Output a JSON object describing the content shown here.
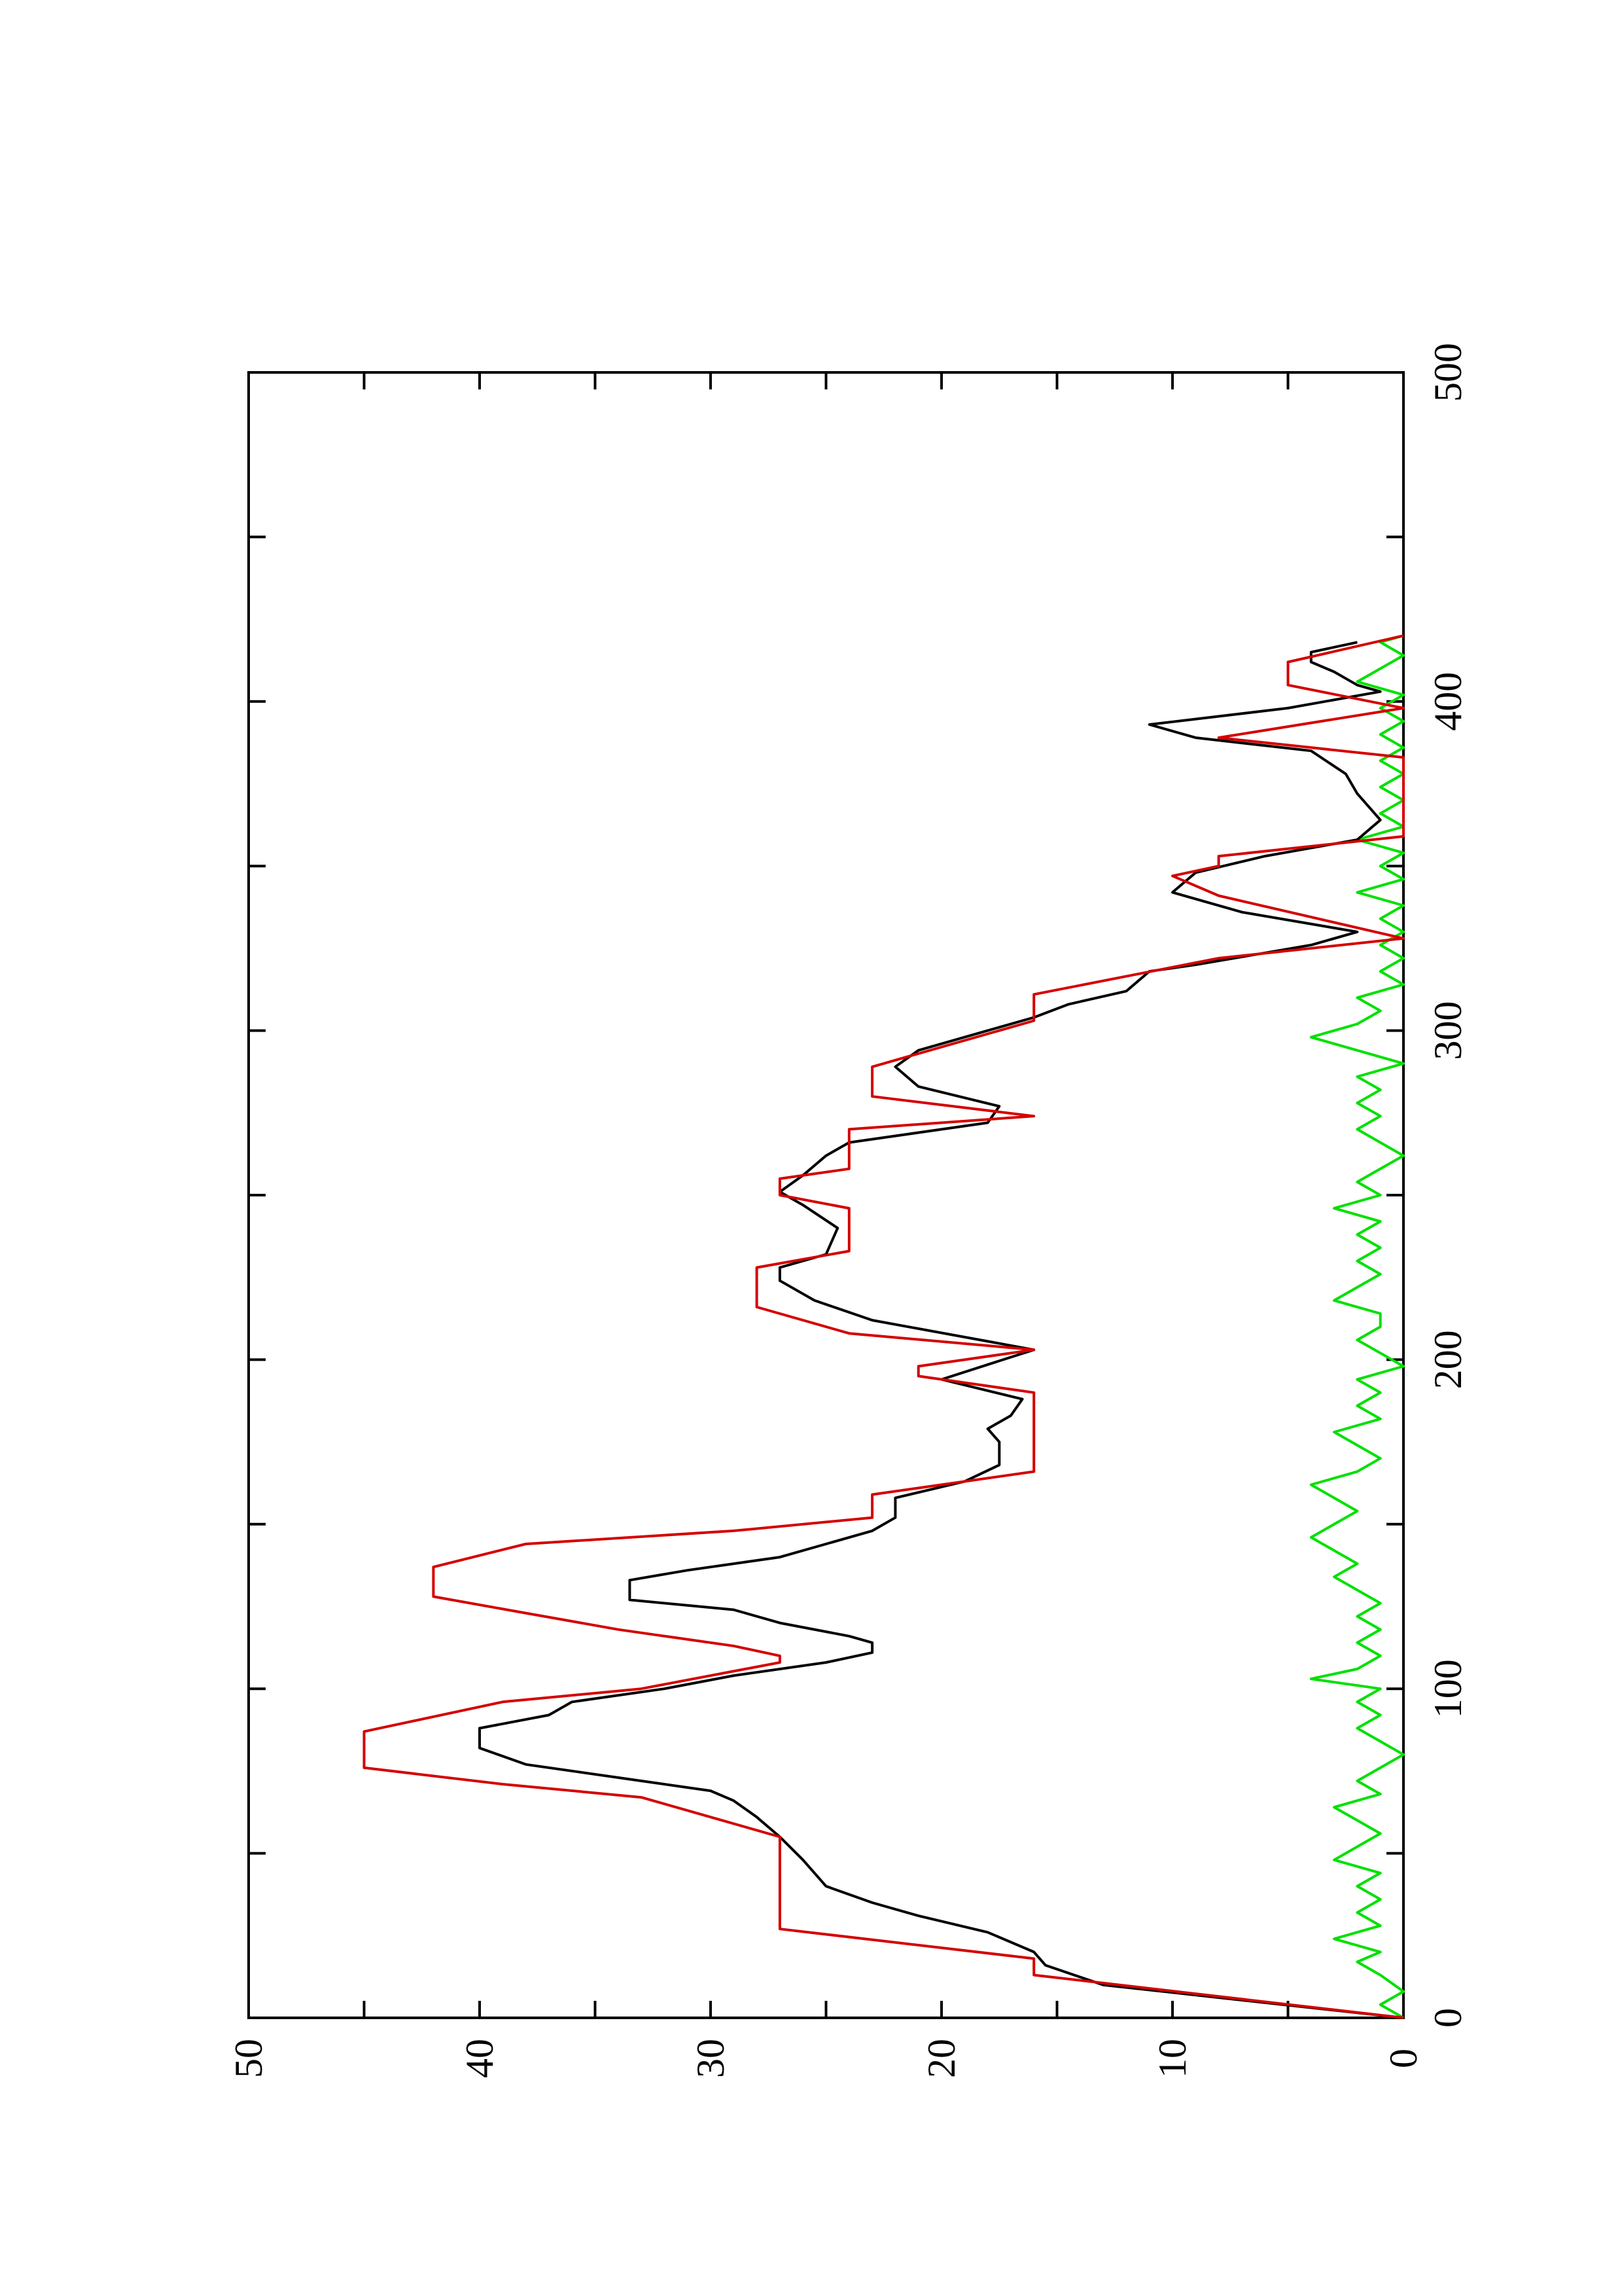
{
  "chart_data": {
    "type": "line",
    "orientation": "rotated 90 degrees counter-clockwise",
    "title": "",
    "xlabel": "",
    "ylabel": "",
    "xlim": [
      0,
      500
    ],
    "ylim": [
      0,
      50
    ],
    "x_ticks": [
      "0",
      "100",
      "200",
      "300",
      "400",
      "500"
    ],
    "y_ticks": [
      "0",
      "10",
      "20",
      "30",
      "40",
      "50"
    ],
    "x_minor_step": 50,
    "y_minor_step": 5,
    "grid": false,
    "legend": "none",
    "series": [
      {
        "color": "#d40000",
        "style": "step-like line",
        "points": [
          [
            0,
            0
          ],
          [
            13,
            16
          ],
          [
            18,
            16
          ],
          [
            27,
            27
          ],
          [
            55,
            27
          ],
          [
            63,
            31
          ],
          [
            67,
            33
          ],
          [
            71,
            39
          ],
          [
            76,
            45
          ],
          [
            87,
            45
          ],
          [
            96,
            39
          ],
          [
            100,
            33
          ],
          [
            108,
            27
          ],
          [
            110,
            27
          ],
          [
            113,
            29
          ],
          [
            118,
            34
          ],
          [
            123,
            38
          ],
          [
            128,
            42
          ],
          [
            137,
            42
          ],
          [
            144,
            38
          ],
          [
            148,
            29
          ],
          [
            152,
            23
          ],
          [
            159,
            23
          ],
          [
            166,
            16
          ],
          [
            190,
            16
          ],
          [
            195,
            21
          ],
          [
            198,
            21
          ],
          [
            203,
            16
          ],
          [
            208,
            24
          ],
          [
            216,
            28
          ],
          [
            228,
            28
          ],
          [
            233,
            24
          ],
          [
            246,
            24
          ],
          [
            250,
            27
          ],
          [
            255,
            27
          ],
          [
            258,
            24
          ],
          [
            270,
            24
          ],
          [
            274,
            16
          ],
          [
            280,
            23
          ],
          [
            289,
            23
          ],
          [
            295,
            20
          ],
          [
            303,
            16
          ],
          [
            311,
            16
          ],
          [
            322,
            8
          ],
          [
            328,
            0
          ],
          [
            341,
            8
          ],
          [
            347,
            10
          ],
          [
            350,
            8
          ],
          [
            353,
            8
          ],
          [
            359,
            0
          ],
          [
            383,
            0
          ],
          [
            389,
            8
          ],
          [
            398,
            0
          ],
          [
            405,
            5
          ],
          [
            412,
            5
          ],
          [
            420,
            0
          ]
        ]
      },
      {
        "color": "#000000",
        "style": "smooth line",
        "points": [
          [
            0,
            0
          ],
          [
            10,
            13
          ],
          [
            16,
            15.5
          ],
          [
            20,
            16
          ],
          [
            26,
            18
          ],
          [
            31,
            21
          ],
          [
            35,
            23
          ],
          [
            40,
            25
          ],
          [
            48,
            26
          ],
          [
            55,
            27
          ],
          [
            61,
            28
          ],
          [
            66,
            29
          ],
          [
            69,
            30
          ],
          [
            72,
            33
          ],
          [
            77,
            38
          ],
          [
            82,
            40
          ],
          [
            88,
            40
          ],
          [
            92,
            37
          ],
          [
            96,
            36
          ],
          [
            100,
            32
          ],
          [
            104,
            29
          ],
          [
            108,
            25
          ],
          [
            111,
            23
          ],
          [
            114,
            23
          ],
          [
            116,
            24
          ],
          [
            120,
            27
          ],
          [
            124,
            29
          ],
          [
            127,
            33.5
          ],
          [
            133,
            33.5
          ],
          [
            136,
            31
          ],
          [
            140,
            27
          ],
          [
            144,
            25
          ],
          [
            148,
            23
          ],
          [
            152,
            22
          ],
          [
            158,
            22
          ],
          [
            163,
            19
          ],
          [
            168,
            17.5
          ],
          [
            175,
            17.5
          ],
          [
            179,
            18
          ],
          [
            183,
            17
          ],
          [
            188,
            16.5
          ],
          [
            194,
            20
          ],
          [
            203,
            16
          ],
          [
            212,
            23
          ],
          [
            218,
            25.5
          ],
          [
            224,
            27
          ],
          [
            228,
            27
          ],
          [
            232,
            25
          ],
          [
            240,
            24.5
          ],
          [
            247,
            26
          ],
          [
            251,
            27
          ],
          [
            256,
            26
          ],
          [
            262,
            25
          ],
          [
            266,
            24
          ],
          [
            272,
            18
          ],
          [
            277,
            17.5
          ],
          [
            283,
            21
          ],
          [
            289,
            22
          ],
          [
            294,
            21
          ],
          [
            300,
            18
          ],
          [
            304,
            16
          ],
          [
            308,
            14.5
          ],
          [
            312,
            12
          ],
          [
            318,
            11
          ],
          [
            320,
            9
          ],
          [
            326,
            4
          ],
          [
            330,
            2
          ],
          [
            336,
            7
          ],
          [
            342,
            10
          ],
          [
            348,
            9
          ],
          [
            353,
            6
          ],
          [
            358,
            2
          ],
          [
            364,
            1
          ],
          [
            372,
            2
          ],
          [
            378,
            2.5
          ],
          [
            385,
            4
          ],
          [
            389,
            9
          ],
          [
            393,
            11
          ],
          [
            398,
            5
          ],
          [
            403,
            1
          ],
          [
            405,
            2
          ],
          [
            409,
            3
          ],
          [
            412,
            4
          ],
          [
            415,
            4
          ],
          [
            418,
            2
          ]
        ]
      },
      {
        "color": "#00e000",
        "style": "noisy line",
        "points": [
          [
            0,
            0
          ],
          [
            4,
            1
          ],
          [
            8,
            0
          ],
          [
            13,
            1
          ],
          [
            17,
            2
          ],
          [
            20,
            1
          ],
          [
            24,
            3
          ],
          [
            28,
            1
          ],
          [
            32,
            2
          ],
          [
            36,
            1
          ],
          [
            40,
            2
          ],
          [
            44,
            1
          ],
          [
            48,
            3
          ],
          [
            52,
            2
          ],
          [
            56,
            1
          ],
          [
            60,
            2
          ],
          [
            64,
            3
          ],
          [
            68,
            1
          ],
          [
            72,
            2
          ],
          [
            76,
            1
          ],
          [
            80,
            0
          ],
          [
            84,
            1
          ],
          [
            88,
            2
          ],
          [
            92,
            1
          ],
          [
            96,
            2
          ],
          [
            100,
            1
          ],
          [
            103,
            4
          ],
          [
            106,
            2
          ],
          [
            110,
            1
          ],
          [
            114,
            2
          ],
          [
            118,
            1
          ],
          [
            122,
            2
          ],
          [
            126,
            1
          ],
          [
            130,
            2
          ],
          [
            134,
            3
          ],
          [
            138,
            2
          ],
          [
            142,
            3
          ],
          [
            146,
            4
          ],
          [
            150,
            3
          ],
          [
            154,
            2
          ],
          [
            158,
            3
          ],
          [
            162,
            4
          ],
          [
            166,
            2
          ],
          [
            170,
            1
          ],
          [
            174,
            2
          ],
          [
            178,
            3
          ],
          [
            182,
            1
          ],
          [
            186,
            2
          ],
          [
            190,
            1
          ],
          [
            194,
            2
          ],
          [
            198,
            0
          ],
          [
            202,
            1
          ],
          [
            206,
            2
          ],
          [
            210,
            1
          ],
          [
            214,
            1
          ],
          [
            218,
            3
          ],
          [
            222,
            2
          ],
          [
            226,
            1
          ],
          [
            230,
            2
          ],
          [
            234,
            1
          ],
          [
            238,
            2
          ],
          [
            242,
            1
          ],
          [
            246,
            3
          ],
          [
            250,
            1
          ],
          [
            254,
            2
          ],
          [
            258,
            1
          ],
          [
            262,
            0
          ],
          [
            266,
            1
          ],
          [
            270,
            2
          ],
          [
            274,
            1
          ],
          [
            278,
            2
          ],
          [
            282,
            1
          ],
          [
            286,
            2
          ],
          [
            290,
            0
          ],
          [
            294,
            2
          ],
          [
            298,
            4
          ],
          [
            302,
            2
          ],
          [
            306,
            1
          ],
          [
            310,
            2
          ],
          [
            314,
            0
          ],
          [
            318,
            1
          ],
          [
            322,
            0
          ],
          [
            326,
            1
          ],
          [
            330,
            0
          ],
          [
            334,
            1
          ],
          [
            338,
            0
          ],
          [
            342,
            2
          ],
          [
            346,
            0
          ],
          [
            350,
            1
          ],
          [
            354,
            0
          ],
          [
            358,
            2
          ],
          [
            362,
            0
          ],
          [
            366,
            1
          ],
          [
            370,
            0
          ],
          [
            374,
            1
          ],
          [
            378,
            0
          ],
          [
            382,
            1
          ],
          [
            386,
            0
          ],
          [
            390,
            1
          ],
          [
            394,
            0
          ],
          [
            398,
            1
          ],
          [
            402,
            0
          ],
          [
            406,
            2
          ],
          [
            410,
            1
          ],
          [
            414,
            0
          ],
          [
            418,
            1
          ],
          [
            420,
            0
          ]
        ]
      }
    ]
  }
}
